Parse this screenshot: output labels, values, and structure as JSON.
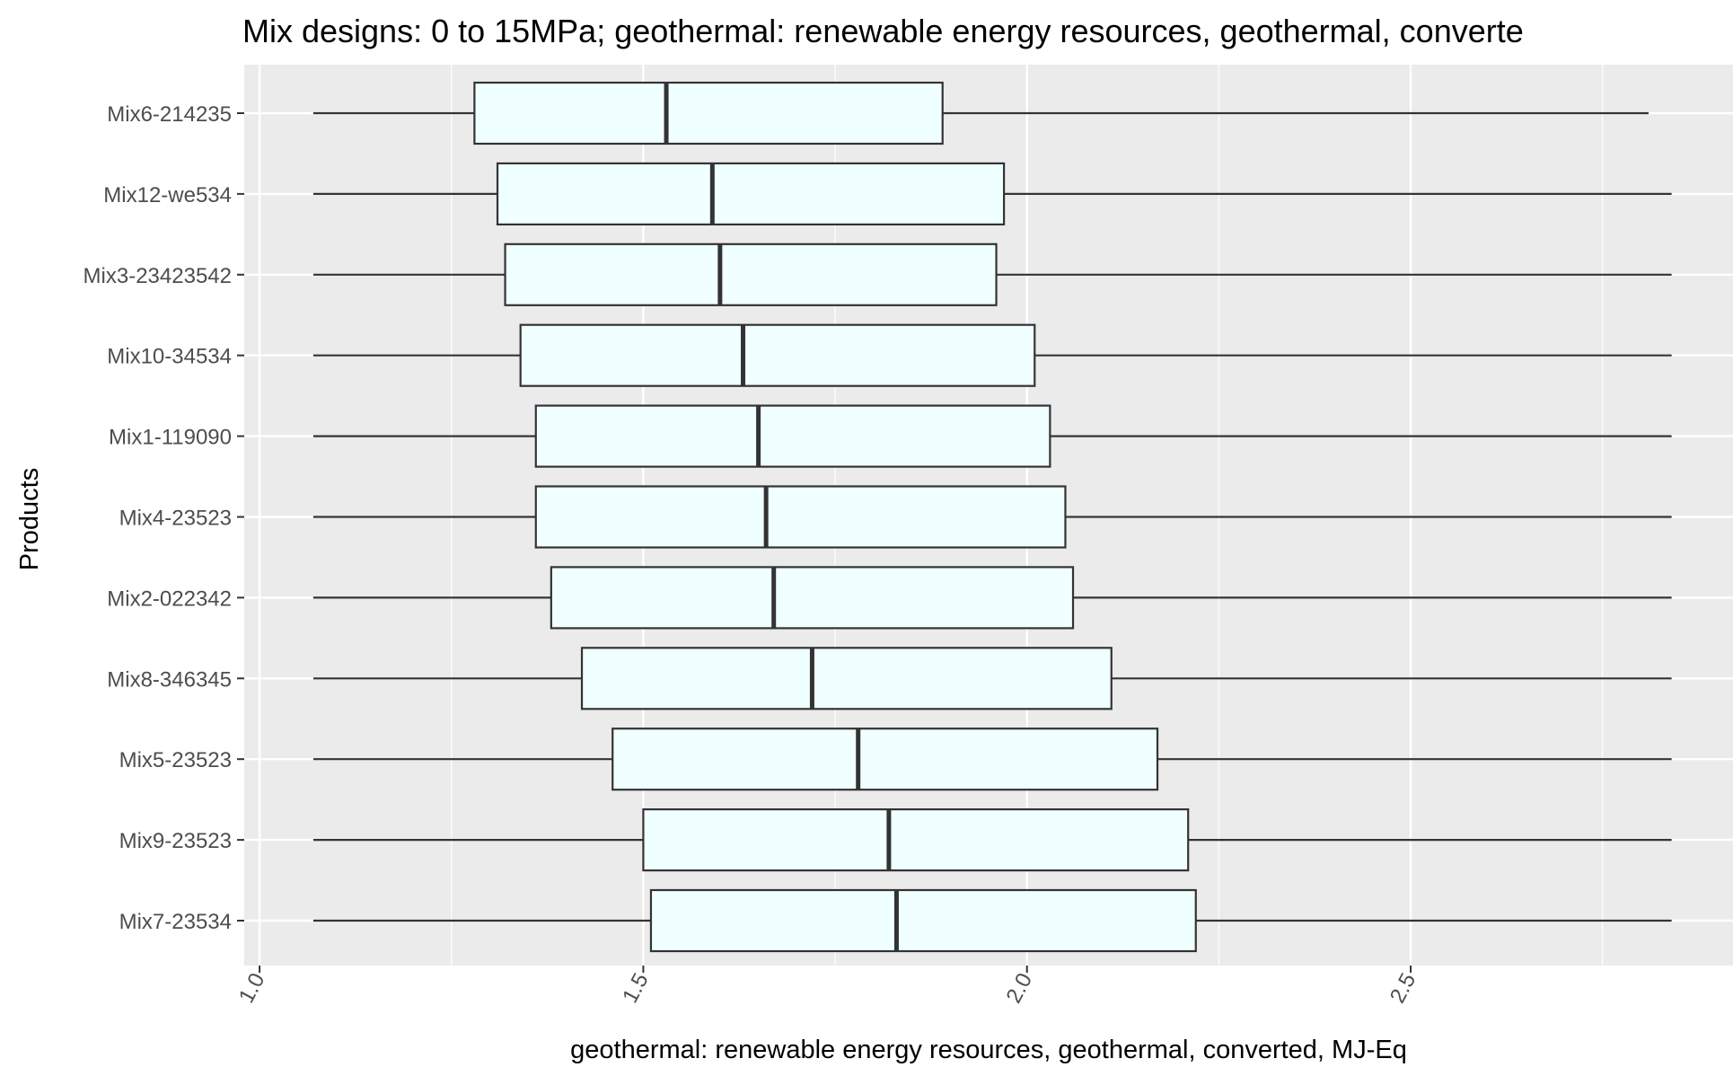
{
  "chart_data": {
    "type": "boxplot",
    "orientation": "horizontal",
    "title": "Mix designs: 0 to 15MPa; geothermal: renewable energy resources, geothermal, converte",
    "xlabel": "geothermal: renewable energy resources, geothermal, converted, MJ-Eq",
    "ylabel": "Products",
    "xlim": [
      0.98,
      2.92
    ],
    "xticks": [
      1.0,
      1.5,
      2.0,
      2.5
    ],
    "xtick_labels": [
      "1.0",
      "1.5",
      "2.0",
      "2.5"
    ],
    "grid": true,
    "box_fill": "#f0ffff",
    "box_stroke": "#333333",
    "panel_background": "#ebebeb",
    "categories": [
      "Mix6-214235",
      "Mix12-we534",
      "Mix3-23423542",
      "Mix10-34534",
      "Mix1-119090",
      "Mix4-23523",
      "Mix2-022342",
      "Mix8-346345",
      "Mix5-23523",
      "Mix9-23523",
      "Mix7-23534"
    ],
    "boxes": [
      {
        "label": "Mix6-214235",
        "min": 1.07,
        "q1": 1.28,
        "median": 1.53,
        "q3": 1.89,
        "max": 2.81
      },
      {
        "label": "Mix12-we534",
        "min": 1.07,
        "q1": 1.31,
        "median": 1.59,
        "q3": 1.97,
        "max": 2.84
      },
      {
        "label": "Mix3-23423542",
        "min": 1.07,
        "q1": 1.32,
        "median": 1.6,
        "q3": 1.96,
        "max": 2.84
      },
      {
        "label": "Mix10-34534",
        "min": 1.07,
        "q1": 1.34,
        "median": 1.63,
        "q3": 2.01,
        "max": 2.84
      },
      {
        "label": "Mix1-119090",
        "min": 1.07,
        "q1": 1.36,
        "median": 1.65,
        "q3": 2.03,
        "max": 2.84
      },
      {
        "label": "Mix4-23523",
        "min": 1.07,
        "q1": 1.36,
        "median": 1.66,
        "q3": 2.05,
        "max": 2.84
      },
      {
        "label": "Mix2-022342",
        "min": 1.07,
        "q1": 1.38,
        "median": 1.67,
        "q3": 2.06,
        "max": 2.84
      },
      {
        "label": "Mix8-346345",
        "min": 1.07,
        "q1": 1.42,
        "median": 1.72,
        "q3": 2.11,
        "max": 2.84
      },
      {
        "label": "Mix5-23523",
        "min": 1.07,
        "q1": 1.46,
        "median": 1.78,
        "q3": 2.17,
        "max": 2.84
      },
      {
        "label": "Mix9-23523",
        "min": 1.07,
        "q1": 1.5,
        "median": 1.82,
        "q3": 2.21,
        "max": 2.84
      },
      {
        "label": "Mix7-23534",
        "min": 1.07,
        "q1": 1.51,
        "median": 1.83,
        "q3": 2.22,
        "max": 2.84
      }
    ]
  }
}
